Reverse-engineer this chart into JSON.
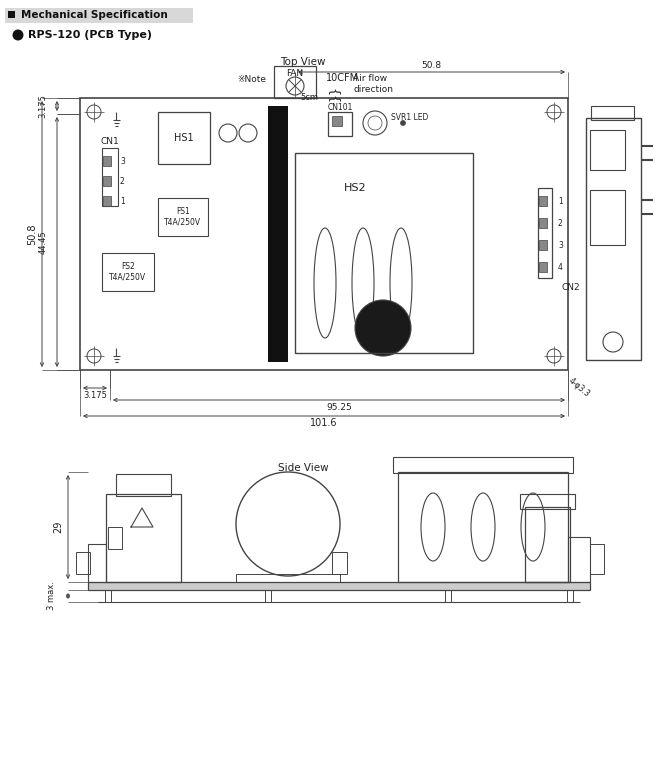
{
  "bg_color": "#ffffff",
  "lc": "#444444",
  "tc": "#222222",
  "title_header": "Mechanical Specification",
  "subtitle": "RPS-120 (PCB Type)",
  "top_view_label": "Top View",
  "side_view_label": "Side View",
  "dim_50_8_top": "50.8",
  "dim_3_175_left": "3.175",
  "dim_50_8_left": "50.8",
  "dim_44_45": "44.45",
  "dim_3_175_bot": "3.175",
  "dim_95_25": "95.25",
  "dim_101_6": "101.6",
  "dim_4_phi_3_3": "4-φ3.3",
  "label_fan": "FAN",
  "label_10cfm": "10CFM",
  "label_note": "※Note",
  "label_5cm": "5cm",
  "label_airflow": "Air flow\ndirection",
  "label_hs1": "HS1",
  "label_hs2": "HS2",
  "label_cn1": "CN1",
  "label_cn101": "CN101",
  "label_cn2": "CN2",
  "label_svr1led": "SVR1 LED",
  "label_fs1": "FS1\nT4A/250V",
  "label_fs2": "FS2\nT4A/250V",
  "label_29": "29",
  "label_3max": "3 max."
}
